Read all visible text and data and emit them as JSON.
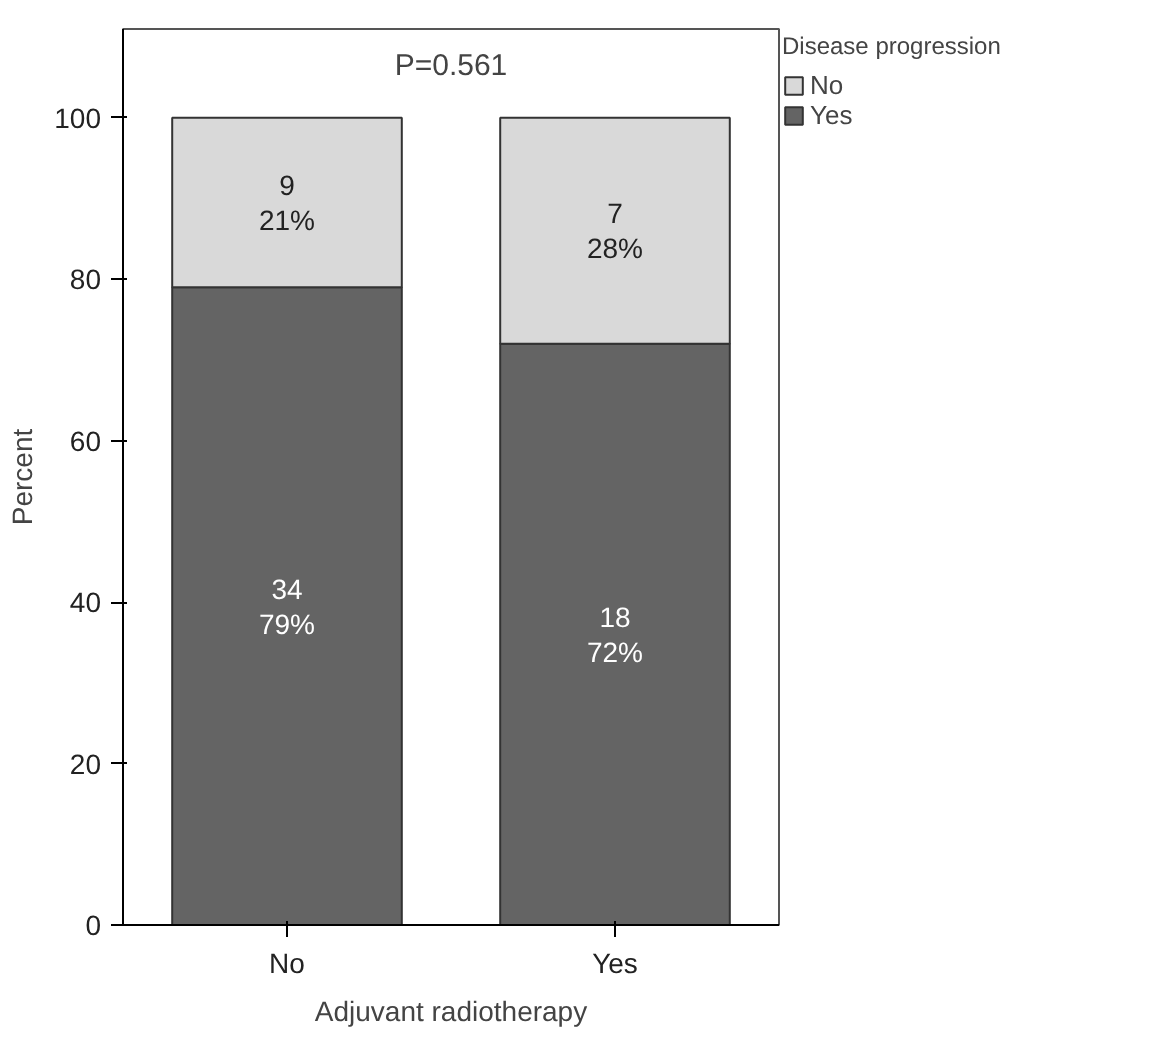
{
  "chart_data": {
    "type": "bar",
    "stacked": true,
    "categories": [
      "No",
      "Yes"
    ],
    "series": [
      {
        "name": "Yes",
        "color": "#646464",
        "values": [
          79,
          72
        ],
        "value_labels": [
          "34\n79%",
          "18\n72%"
        ]
      },
      {
        "name": "No",
        "color": "#d9d9d9",
        "values": [
          21,
          28
        ],
        "value_labels": [
          "9\n21%",
          "7\n28%"
        ]
      }
    ],
    "xlabel": "Adjuvant radiotherapy",
    "ylabel": "Percent",
    "legend_title": "Disease progression",
    "legend": "top right",
    "grid": false,
    "ylim": [
      0,
      111
    ],
    "yticks": [
      0,
      20,
      40,
      60,
      80,
      100
    ],
    "annotations": [
      "P=0.561"
    ]
  }
}
